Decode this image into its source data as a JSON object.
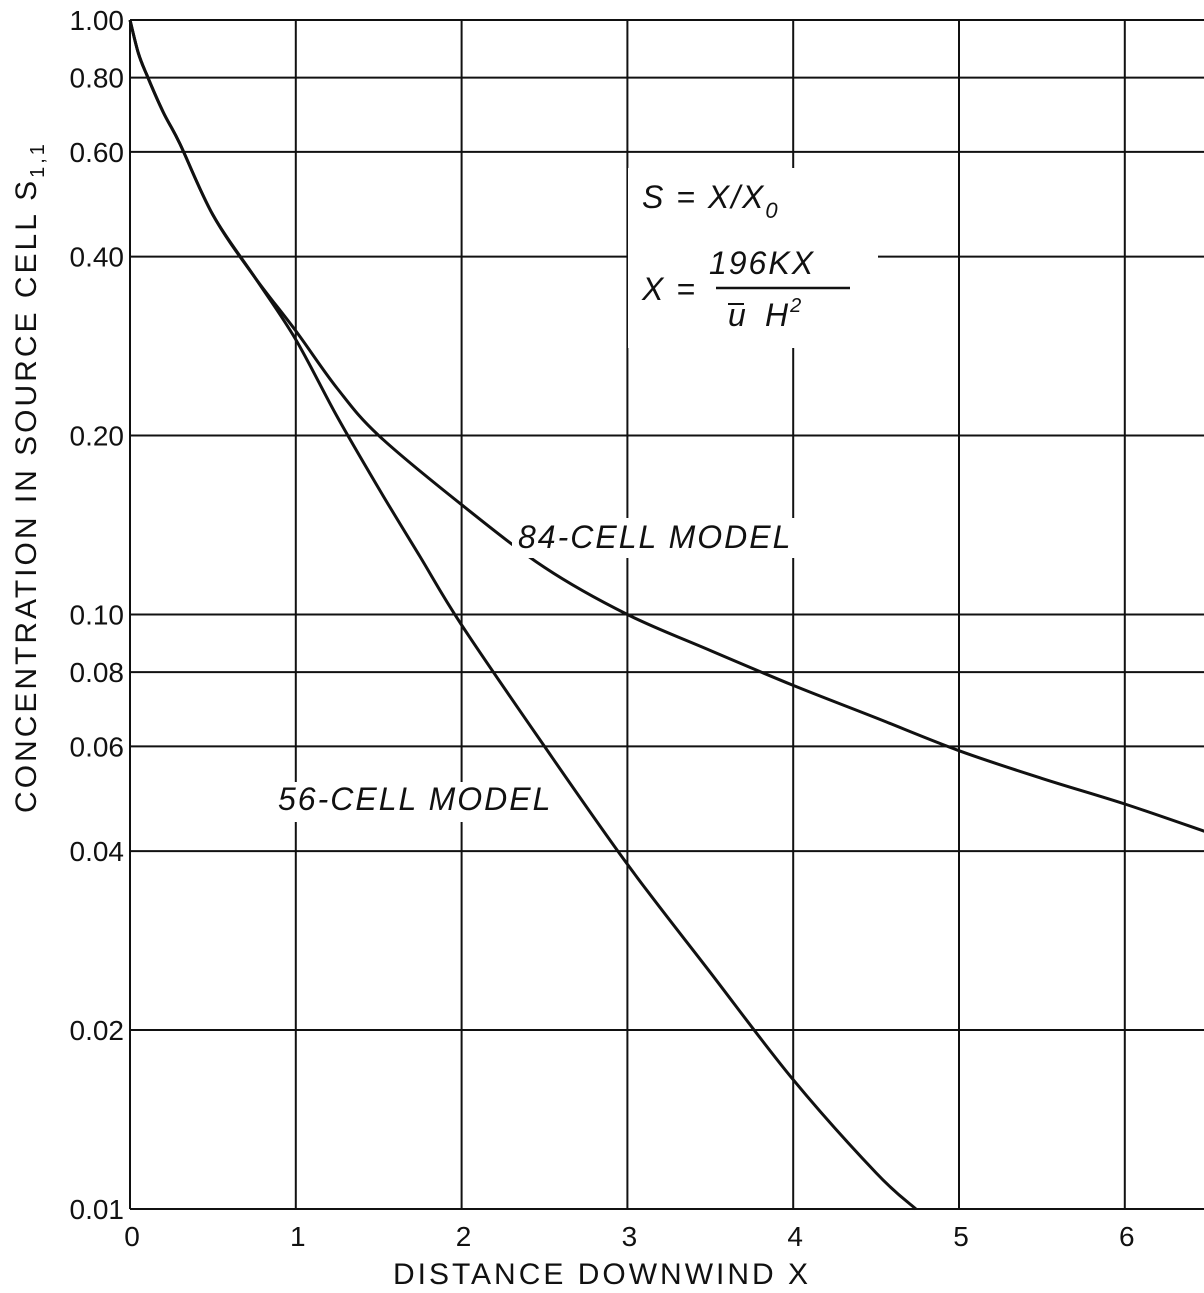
{
  "chart_data": {
    "type": "line",
    "xlabel": "DISTANCE DOWNWIND X",
    "ylabel": "CONCENTRATION IN SOURCE CELL S",
    "ylabel_subscript": "1,1",
    "xlim": [
      0,
      6.5
    ],
    "ylim": [
      0.01,
      1.0
    ],
    "yscale": "log",
    "grid": true,
    "x_ticks": [
      0,
      1,
      2,
      3,
      4,
      5,
      6
    ],
    "x_tick_labels": [
      "0",
      "1",
      "2",
      "3",
      "4",
      "5",
      "6"
    ],
    "y_ticks": [
      0.01,
      0.02,
      0.04,
      0.06,
      0.08,
      0.1,
      0.2,
      0.4,
      0.6,
      0.8,
      1.0
    ],
    "y_tick_labels": [
      "0.01",
      "0.02",
      "0.04",
      "0.06",
      "0.08",
      "0.10",
      "0.20",
      "0.40",
      "0.60",
      "0.80",
      "1.00"
    ],
    "equations": {
      "line1": "S = X/X",
      "line1_sub": "0",
      "line2_lhs": "X =",
      "line2_numerator": "196KX",
      "line2_den_u": "u",
      "line2_den_h": "H",
      "line2_den_exp": "2"
    },
    "series": [
      {
        "name": "84-CELL MODEL",
        "x": [
          0,
          0.05,
          0.1,
          0.2,
          0.3,
          0.5,
          0.75,
          1.0,
          1.25,
          1.5,
          2.0,
          2.5,
          3.0,
          3.5,
          4.0,
          4.5,
          5.0,
          5.5,
          6.0,
          6.5
        ],
        "y": [
          1.0,
          0.88,
          0.81,
          0.7,
          0.62,
          0.47,
          0.37,
          0.3,
          0.24,
          0.2,
          0.153,
          0.12,
          0.1,
          0.087,
          0.076,
          0.067,
          0.059,
          0.053,
          0.048,
          0.043
        ]
      },
      {
        "name": "56-CELL MODEL",
        "x": [
          0,
          0.05,
          0.1,
          0.2,
          0.3,
          0.5,
          0.75,
          1.0,
          1.25,
          1.5,
          1.75,
          2.0,
          2.5,
          3.0,
          3.5,
          4.0,
          4.5,
          4.74
        ],
        "y": [
          1.0,
          0.88,
          0.81,
          0.7,
          0.62,
          0.47,
          0.37,
          0.29,
          0.215,
          0.163,
          0.125,
          0.096,
          0.06,
          0.038,
          0.025,
          0.0165,
          0.0115,
          0.01
        ]
      }
    ],
    "annotations": [
      {
        "text": "84-CELL MODEL",
        "x": 3.0,
        "y": 0.135
      },
      {
        "text": "56-CELL MODEL",
        "x": 1.8,
        "y": 0.05
      }
    ]
  }
}
